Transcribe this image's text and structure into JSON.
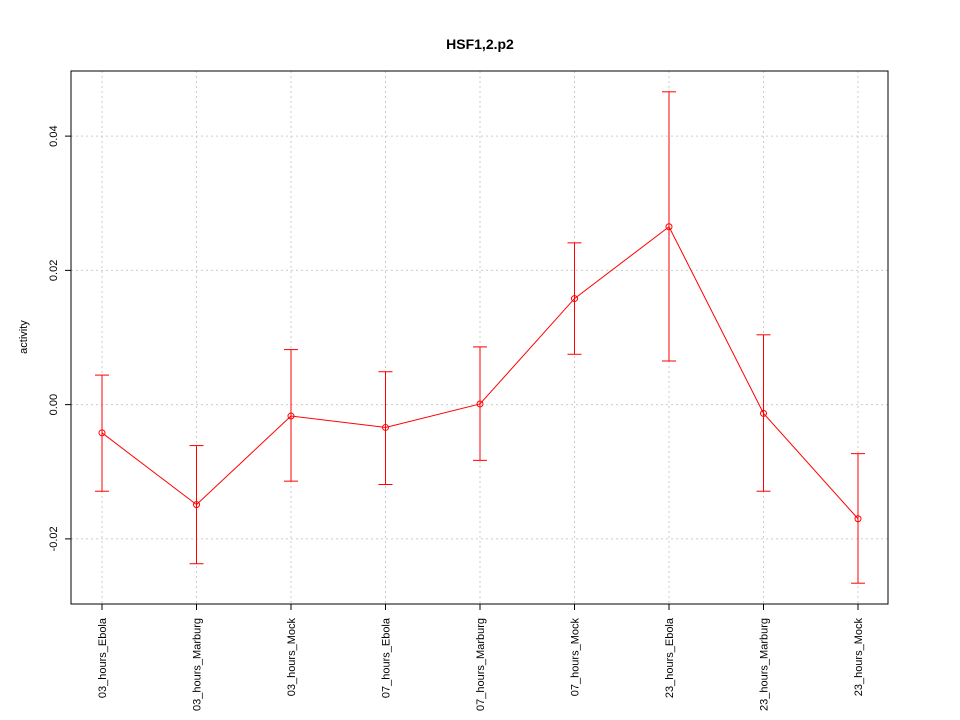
{
  "chart_data": {
    "type": "line",
    "title": "HSF1,2.p2",
    "xlabel": "",
    "ylabel": "activity",
    "categories": [
      "03_hours_Ebola",
      "03_hours_Marburg",
      "03_hours_Mock",
      "07_hours_Ebola",
      "07_hours_Marburg",
      "07_hours_Mock",
      "23_hours_Ebola",
      "23_hours_Marburg",
      "23_hours_Mock"
    ],
    "series": [
      {
        "values": [
          -0.0042,
          -0.0149,
          -0.0017,
          -0.0034,
          0.0001,
          0.0158,
          0.0265,
          -0.0013,
          -0.017
        ],
        "error_low": [
          -0.0129,
          -0.0237,
          -0.0114,
          -0.0119,
          -0.0083,
          0.0075,
          0.0065,
          -0.0129,
          -0.0266
        ],
        "error_high": [
          0.0044,
          -0.0061,
          0.0082,
          0.0049,
          0.0086,
          0.0241,
          0.0466,
          0.0104,
          -0.0073
        ]
      }
    ],
    "yticks": [
      -0.02,
      0.0,
      0.02,
      0.04
    ],
    "ytick_labels": [
      "-0.02",
      "0.00",
      "0.02",
      "0.04"
    ],
    "ylim": [
      -0.0297,
      0.0497
    ],
    "grid": true,
    "color": "#ff0000"
  }
}
